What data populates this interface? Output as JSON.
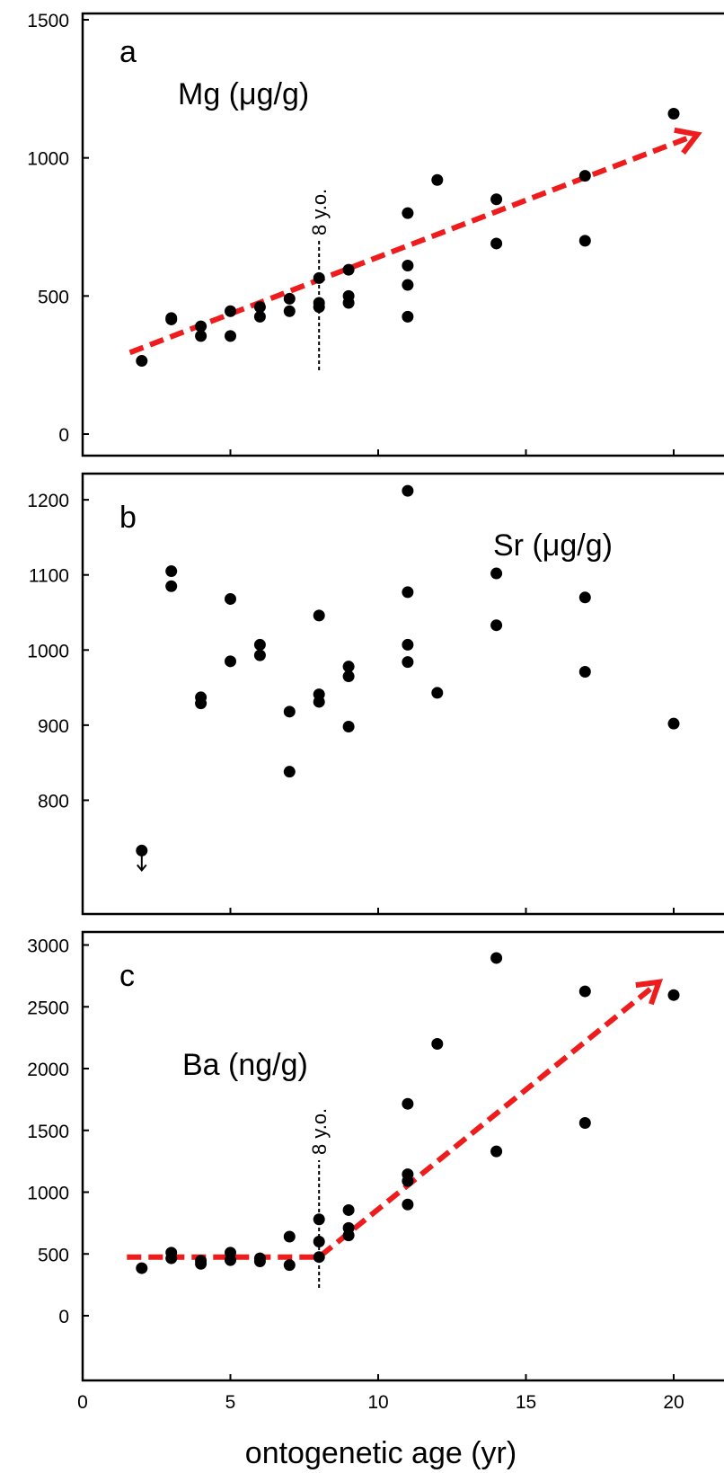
{
  "chart_data": [
    {
      "type": "scatter",
      "panel_letter": "a",
      "title": "Mg (μg/g)",
      "ylim": [
        0,
        1500
      ],
      "xlim": [
        0,
        22
      ],
      "yticks": [
        0,
        500,
        1000,
        1500
      ],
      "annotation": "8 y.o.",
      "annotation_x": 8,
      "points": [
        [
          2,
          265
        ],
        [
          3,
          415
        ],
        [
          3,
          420
        ],
        [
          4,
          390
        ],
        [
          4,
          355
        ],
        [
          5,
          445
        ],
        [
          5,
          355
        ],
        [
          6,
          460
        ],
        [
          6,
          425
        ],
        [
          7,
          490
        ],
        [
          7,
          445
        ],
        [
          8,
          565
        ],
        [
          8,
          475
        ],
        [
          8,
          460
        ],
        [
          9,
          595
        ],
        [
          9,
          500
        ],
        [
          9,
          475
        ],
        [
          11,
          800
        ],
        [
          11,
          610
        ],
        [
          11,
          540
        ],
        [
          11,
          425
        ],
        [
          12,
          920
        ],
        [
          14,
          850
        ],
        [
          14,
          690
        ],
        [
          17,
          935
        ],
        [
          17,
          700
        ],
        [
          20,
          1160
        ]
      ],
      "trend": [
        [
          1.6,
          295
        ],
        [
          20.8,
          1085
        ]
      ],
      "trend_color": "#ee1c1c",
      "grid": false
    },
    {
      "type": "scatter",
      "panel_letter": "b",
      "title": "Sr (μg/g)",
      "ylim": [
        700,
        1260
      ],
      "xlim": [
        0,
        22
      ],
      "yticks": [
        800,
        900,
        1000,
        1100,
        1200
      ],
      "points": [
        [
          2,
          733
        ],
        [
          3,
          1105
        ],
        [
          3,
          1085
        ],
        [
          4,
          937
        ],
        [
          4,
          929
        ],
        [
          5,
          1068
        ],
        [
          5,
          985
        ],
        [
          6,
          1007
        ],
        [
          6,
          993
        ],
        [
          7,
          918
        ],
        [
          7,
          838
        ],
        [
          8,
          1046
        ],
        [
          8,
          941
        ],
        [
          8,
          931
        ],
        [
          9,
          978
        ],
        [
          9,
          965
        ],
        [
          9,
          898
        ],
        [
          11,
          1212
        ],
        [
          11,
          1077
        ],
        [
          11,
          1007
        ],
        [
          11,
          984
        ],
        [
          12,
          943
        ],
        [
          14,
          1102
        ],
        [
          14,
          1033
        ],
        [
          17,
          1070
        ],
        [
          17,
          971
        ],
        [
          20,
          902
        ]
      ],
      "below_range_marker_x": 2,
      "grid": false
    },
    {
      "type": "scatter",
      "panel_letter": "c",
      "title": "Ba (ng/g)",
      "ylim": [
        0,
        3200
      ],
      "xlim": [
        0,
        22
      ],
      "yticks": [
        0,
        500,
        1000,
        1500,
        2000,
        2500,
        3000
      ],
      "annotation": "8 y.o.",
      "annotation_x": 8,
      "points": [
        [
          2,
          385
        ],
        [
          3,
          510
        ],
        [
          3,
          465
        ],
        [
          4,
          445
        ],
        [
          4,
          420
        ],
        [
          5,
          510
        ],
        [
          5,
          450
        ],
        [
          6,
          465
        ],
        [
          6,
          440
        ],
        [
          7,
          640
        ],
        [
          7,
          410
        ],
        [
          8,
          780
        ],
        [
          8,
          600
        ],
        [
          8,
          475
        ],
        [
          9,
          855
        ],
        [
          9,
          710
        ],
        [
          9,
          650
        ],
        [
          11,
          1715
        ],
        [
          11,
          1145
        ],
        [
          11,
          1090
        ],
        [
          11,
          900
        ],
        [
          12,
          2200
        ],
        [
          14,
          2895
        ],
        [
          14,
          1330
        ],
        [
          17,
          2625
        ],
        [
          17,
          1560
        ],
        [
          20,
          2595
        ]
      ],
      "trend": [
        [
          1.5,
          475
        ],
        [
          8,
          475
        ],
        [
          19.5,
          2700
        ]
      ],
      "trend_color": "#ee1c1c",
      "grid": false
    }
  ],
  "x_axis": {
    "label": "ontogenetic age (yr)",
    "ticks": [
      0,
      5,
      10,
      15,
      20
    ]
  }
}
